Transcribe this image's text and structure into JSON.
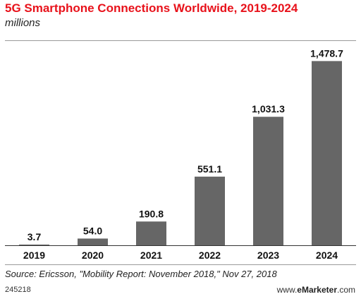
{
  "chart_data": {
    "type": "bar",
    "title": "5G Smartphone Connections Worldwide, 2019-2024",
    "subtitle": "millions",
    "categories": [
      "2019",
      "2020",
      "2021",
      "2022",
      "2023",
      "2024"
    ],
    "values": [
      3.7,
      54.0,
      190.8,
      551.1,
      1031.3,
      1478.7
    ],
    "data_labels": [
      "3.7",
      "54.0",
      "190.8",
      "551.1",
      "1,031.3",
      "1,478.7"
    ],
    "ylim": [
      0,
      1600
    ],
    "bar_color": "#666666",
    "grid": false,
    "xlabel": "",
    "ylabel": ""
  },
  "footer": {
    "source": "Source: Ericsson, \"Mobility Report: November 2018,\" Nov 27, 2018",
    "chart_id": "245218",
    "brand_prefix": "www.",
    "brand_name": "eMarketer",
    "brand_suffix": ".com"
  },
  "colors": {
    "title": "#e8121b",
    "bar": "#666666"
  }
}
